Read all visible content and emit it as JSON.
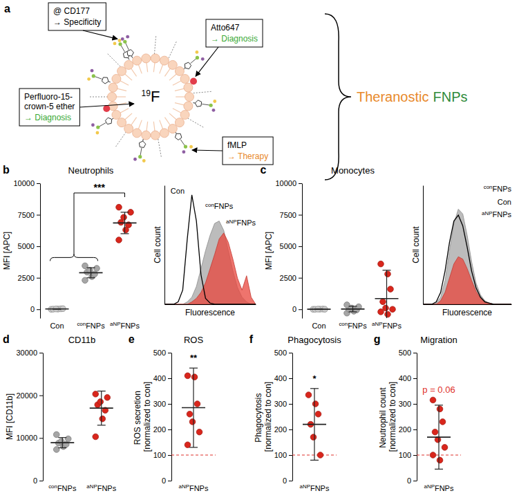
{
  "diagram": {
    "panel": "a",
    "center_label": {
      "mass": "19",
      "element": "F"
    },
    "boxes": [
      {
        "name": "@ CD177",
        "role": "→ Specificity",
        "color": "#000000"
      },
      {
        "name": "Atto647",
        "role": "→ Diagnosis",
        "color": "#3aa935"
      },
      {
        "name": "Perfluoro-15-crown-5 ether",
        "role": "→ Diagnosis",
        "color": "#3aa935"
      },
      {
        "name": "fMLP",
        "role": "→ Therapy",
        "color": "#e8892b"
      }
    ],
    "result": [
      {
        "text": "Theranostic",
        "color": "#e8892b"
      },
      {
        "text": "FNPs",
        "color": "#2e8b3a"
      }
    ]
  },
  "chart_data": [
    {
      "type": "dot",
      "panel": "b",
      "title": "Neutrophils",
      "ylabel": "MFI [APC]",
      "categories": [
        "Con",
        "conFNPs",
        "aNPFNPs"
      ],
      "values": [
        [
          0,
          20,
          40,
          10,
          30,
          50
        ],
        [
          2300,
          2600,
          2800,
          2950,
          3100,
          3250,
          3450
        ],
        [
          5500,
          6300,
          6700,
          6900,
          7300,
          7700,
          8100
        ]
      ],
      "mean": [
        25,
        2900,
        6850
      ],
      "error": [
        18,
        400,
        850
      ],
      "colors": [
        "#c8c8c8",
        "#a6a6a6",
        "#d9261c"
      ],
      "ylim": [
        -700,
        10000
      ],
      "yticks": [
        0,
        2500,
        5000,
        7500,
        10000
      ],
      "annotations": [
        {
          "text": "***",
          "color": "#000000"
        }
      ]
    },
    {
      "type": "area",
      "xlabel": "Fluorescence",
      "ylabel": "Cell count",
      "tick_labels": false,
      "x": [
        0,
        5,
        10,
        15,
        20,
        25,
        30,
        35,
        40,
        45,
        50,
        55,
        60,
        65,
        70,
        75,
        80,
        85,
        90,
        95,
        100
      ],
      "xlim": [
        0,
        100
      ],
      "ylim": [
        0,
        100
      ],
      "series": [
        {
          "name": "Con",
          "type": "line",
          "color": "#000000",
          "values": [
            0,
            0,
            0,
            2,
            12,
            55,
            92,
            70,
            25,
            5,
            1,
            0,
            0,
            0,
            0,
            0,
            0,
            0,
            0,
            0,
            0
          ]
        },
        {
          "name": "conFNPs",
          "type": "area",
          "color": "#a6a6a6",
          "values": [
            0,
            0,
            0,
            0,
            0,
            2,
            6,
            15,
            30,
            45,
            58,
            68,
            70,
            62,
            45,
            28,
            14,
            6,
            2,
            0,
            0
          ]
        },
        {
          "name": "aNPFNPs",
          "type": "area",
          "color": "#e8453c",
          "values": [
            0,
            0,
            0,
            0,
            0,
            0,
            2,
            5,
            10,
            18,
            30,
            42,
            55,
            60,
            52,
            38,
            22,
            12,
            24,
            6,
            0
          ]
        }
      ]
    },
    {
      "type": "dot",
      "panel": "c",
      "title": "Monocytes",
      "ylabel": "MFI [APC]",
      "categories": [
        "Con",
        "conFNPs",
        "aNPFNPs"
      ],
      "values": [
        [
          0,
          10,
          20,
          0,
          15,
          5
        ],
        [
          -300,
          -150,
          -50,
          0,
          100,
          200,
          350
        ],
        [
          3600,
          2800,
          1600,
          600,
          100,
          0,
          -200,
          -400
        ]
      ],
      "mean": [
        8,
        20,
        850
      ],
      "error": [
        8,
        220,
        2250
      ],
      "colors": [
        "#c8c8c8",
        "#a6a6a6",
        "#d9261c"
      ],
      "ylim": [
        -700,
        10000
      ],
      "yticks": [
        0,
        2500,
        5000,
        7500,
        10000
      ]
    },
    {
      "type": "area",
      "xlabel": "Fluorescence",
      "ylabel": "Cell count",
      "tick_labels": false,
      "x": [
        0,
        5,
        10,
        15,
        20,
        25,
        30,
        35,
        40,
        45,
        50,
        55,
        60,
        65,
        70,
        75,
        80,
        85,
        90,
        95,
        100
      ],
      "xlim": [
        0,
        100
      ],
      "ylim": [
        0,
        100
      ],
      "series": [
        {
          "name": "Con",
          "type": "line",
          "color": "#000000",
          "values": [
            0,
            0,
            0,
            2,
            10,
            28,
            52,
            70,
            75,
            66,
            48,
            28,
            14,
            6,
            2,
            1,
            0,
            0,
            0,
            0,
            0
          ]
        },
        {
          "name": "conFNPs",
          "type": "area",
          "color": "#a6a6a6",
          "values": [
            0,
            0,
            0,
            1,
            6,
            20,
            45,
            68,
            80,
            76,
            58,
            36,
            18,
            8,
            3,
            1,
            0,
            0,
            0,
            0,
            0
          ]
        },
        {
          "name": "aNPFNPs",
          "type": "area",
          "color": "#e8453c",
          "values": [
            0,
            0,
            0,
            0,
            3,
            10,
            22,
            34,
            40,
            38,
            30,
            20,
            11,
            5,
            2,
            1,
            0,
            0,
            0,
            0,
            0
          ]
        }
      ]
    },
    {
      "type": "dot",
      "panel": "d",
      "title": "CD11b",
      "ylabel": "MFI [CD11b]",
      "categories": [
        "conFNPs",
        "aNPFNPs"
      ],
      "values": [
        [
          7300,
          8000,
          8500,
          8800,
          9200,
          9800,
          10800
        ],
        [
          10300,
          14500,
          16500,
          17800,
          18500,
          19500,
          20300
        ]
      ],
      "mean": [
        8900,
        17000
      ],
      "error": [
        1200,
        4000
      ],
      "colors": [
        "#a6a6a6",
        "#d9261c"
      ],
      "ylim": [
        0,
        30000
      ],
      "yticks": [
        0,
        10000,
        20000,
        30000
      ]
    },
    {
      "type": "dot",
      "panel": "e",
      "title": "ROS",
      "ylabel": "ROS secretion [normalized to con]",
      "categories": [
        "aNPFNPs"
      ],
      "values": [
        [
          410,
          405,
          300,
          260,
          230,
          190,
          140
        ]
      ],
      "mean": [
        285
      ],
      "error": [
        155
      ],
      "colors": [
        "#d9261c"
      ],
      "ylim": [
        0,
        500
      ],
      "yticks": [
        0,
        100,
        200,
        300,
        400,
        500
      ],
      "reference_line": 100,
      "annotations": [
        {
          "text": "**",
          "color": "#000000"
        }
      ]
    },
    {
      "type": "dot",
      "panel": "f",
      "title": "Phagocytosis",
      "ylabel": "Phagocytosis [normalized to con]",
      "categories": [
        "aNPFNPs"
      ],
      "values": [
        [
          335,
          300,
          260,
          220,
          170,
          100
        ]
      ],
      "mean": [
        220
      ],
      "error": [
        140
      ],
      "colors": [
        "#d9261c"
      ],
      "ylim": [
        0,
        500
      ],
      "yticks": [
        0,
        100,
        200,
        300,
        400,
        500
      ],
      "reference_line": 100,
      "annotations": [
        {
          "text": "*",
          "color": "#000000"
        }
      ]
    },
    {
      "type": "dot",
      "panel": "g",
      "title": "Migration",
      "ylabel": "Neutrophil count [normalized to con]",
      "categories": [
        "aNPFNPs"
      ],
      "values": [
        [
          315,
          280,
          230,
          190,
          160,
          130,
          100,
          80
        ]
      ],
      "mean": [
        170
      ],
      "error": [
        125
      ],
      "colors": [
        "#d9261c"
      ],
      "ylim": [
        0,
        500
      ],
      "yticks": [
        0,
        100,
        200,
        300,
        400,
        500
      ],
      "reference_line": 100,
      "annotations": [
        {
          "text": "p = 0.06",
          "color": "#e0312b"
        }
      ]
    }
  ]
}
